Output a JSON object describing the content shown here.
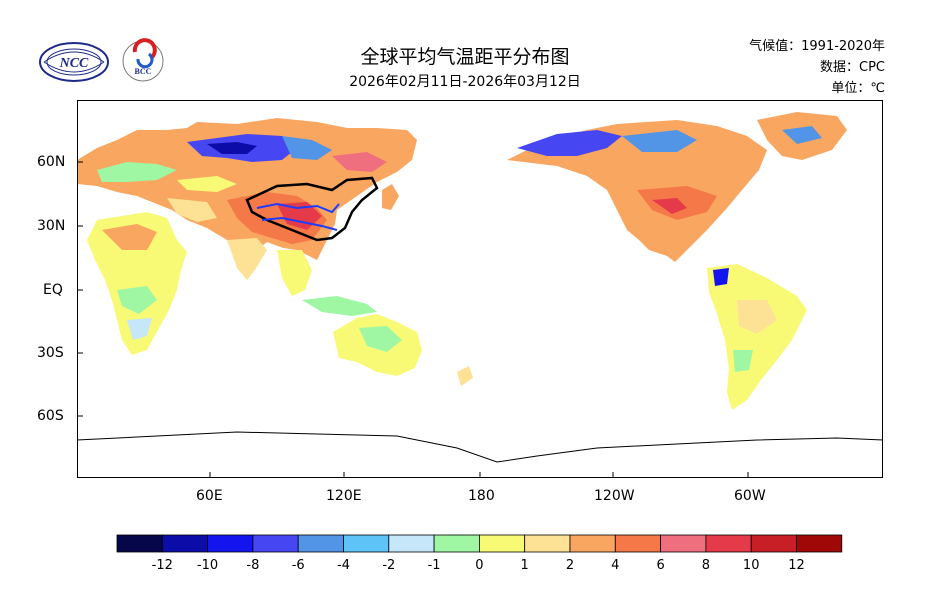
{
  "header": {
    "title": "全球平均气温距平分布图",
    "subtitle": "2026年02月11日-2026年03月12日",
    "climatology": "气候值：1991-2020年",
    "source": "数据：CPC",
    "unit": "单位：℃"
  },
  "logos": {
    "ncc_text": "NCC",
    "bcc_text": "BCC"
  },
  "map": {
    "lat_labels": [
      "60N",
      "30N",
      "EQ",
      "30S",
      "60S"
    ],
    "lon_labels": [
      "60E",
      "120E",
      "180",
      "120W",
      "60W"
    ]
  },
  "colorbar": {
    "labels": [
      "-12",
      "-10",
      "-8",
      "-6",
      "-4",
      "-2",
      "-1",
      "0",
      "1",
      "2",
      "4",
      "6",
      "8",
      "10",
      "12"
    ],
    "colors": [
      "#06064a",
      "#0c0ca8",
      "#1414ee",
      "#4646f2",
      "#5294e6",
      "#5ec3f7",
      "#c6e6fa",
      "#9ff7a4",
      "#f8fa76",
      "#fde296",
      "#f8a660",
      "#f57848",
      "#ef6f7f",
      "#e53a4a",
      "#c81e25",
      "#a00808"
    ]
  },
  "colors": {
    "ocean": "#ffffff",
    "antarctica": "#ffffff",
    "coast": "#000000",
    "china_border": "#000000",
    "rivers": "#1f3cff"
  }
}
